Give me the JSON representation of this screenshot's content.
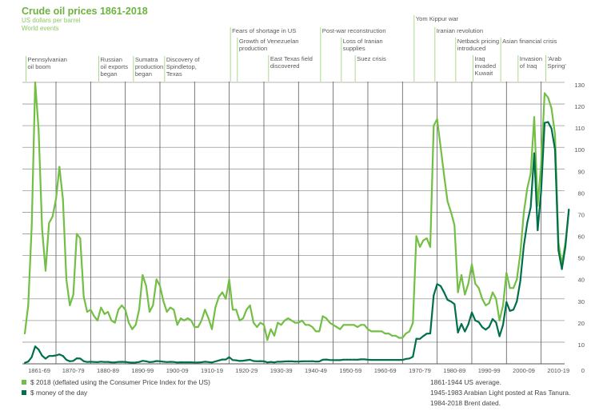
{
  "chart_data": {
    "type": "line",
    "title": "Crude oil prices 1861-2018",
    "subtitle": "US dollars per barrel",
    "events_heading": "World events",
    "ylim": [
      0,
      130
    ],
    "yticks": [
      0,
      10,
      20,
      30,
      40,
      50,
      60,
      70,
      80,
      90,
      100,
      110,
      120,
      130
    ],
    "xlim": [
      1861,
      2018
    ],
    "x_tick_labels": [
      "1861-69",
      "1870-79",
      "1880-89",
      "1890-99",
      "1900-09",
      "1910-19",
      "1920-29",
      "1930-39",
      "1940-49",
      "1950-59",
      "1960-69",
      "1970-79",
      "1980-89",
      "1990-99",
      "2000-09",
      "2010-19"
    ],
    "grid": true,
    "legend_placement": "bottom-left",
    "x_start": 1861,
    "series": [
      {
        "name": "$ 2018 (deflated using the Consumer Price Index for the US)",
        "color": "#72bf44",
        "values": [
          14,
          27,
          64,
          130,
          108,
          62,
          43,
          65,
          68,
          76,
          91,
          76,
          39,
          27,
          32,
          60,
          58,
          31,
          24,
          25,
          22,
          20,
          26,
          23,
          24,
          20,
          19,
          25,
          27,
          25,
          19,
          16,
          18,
          25,
          41,
          36,
          24,
          27,
          39,
          36,
          29,
          24,
          26,
          25,
          18,
          21,
          20,
          21,
          20,
          17,
          17,
          20,
          25,
          21,
          16,
          26,
          31,
          33,
          30,
          39,
          25,
          25,
          20,
          21,
          25,
          27,
          19,
          17,
          19,
          18,
          11,
          16,
          13,
          19,
          18,
          20,
          21,
          20,
          19,
          19,
          20,
          18,
          18,
          17,
          15,
          15,
          22,
          21,
          19,
          18,
          17,
          16,
          18,
          18,
          18,
          18,
          17,
          18,
          18,
          16,
          15,
          15,
          15,
          15,
          14,
          14,
          13,
          13,
          12,
          12,
          14,
          15,
          19,
          59,
          54,
          57,
          58,
          54,
          110,
          113,
          100,
          87,
          75,
          70,
          64,
          33,
          41,
          32,
          37,
          46,
          37,
          35,
          30,
          27,
          28,
          33,
          30,
          20,
          27,
          42,
          35,
          35,
          39,
          51,
          70,
          81,
          88,
          114,
          73,
          92,
          125,
          123,
          118,
          106,
          56,
          46,
          56,
          71
        ]
      },
      {
        "name": "$ money of the day",
        "color": "#00704a",
        "values": [
          0.49,
          1.05,
          3.15,
          8.06,
          6.59,
          3.74,
          2.41,
          3.63,
          3.64,
          3.86,
          4.34,
          3.64,
          1.83,
          1.17,
          1.35,
          2.56,
          2.42,
          1.19,
          0.86,
          0.95,
          0.86,
          0.78,
          1.0,
          0.84,
          0.88,
          0.71,
          0.67,
          0.88,
          0.94,
          0.87,
          0.67,
          0.56,
          0.64,
          0.84,
          1.36,
          1.18,
          0.79,
          0.91,
          1.29,
          1.19,
          0.96,
          0.8,
          0.94,
          0.86,
          0.62,
          0.73,
          0.72,
          0.72,
          0.7,
          0.61,
          0.61,
          0.74,
          0.95,
          0.81,
          0.64,
          1.1,
          1.56,
          1.98,
          2.01,
          3.07,
          1.73,
          1.61,
          1.34,
          1.43,
          1.68,
          1.88,
          1.3,
          1.17,
          1.27,
          1.19,
          0.65,
          0.87,
          0.67,
          1.0,
          0.97,
          1.09,
          1.18,
          1.13,
          1.02,
          1.02,
          1.14,
          1.19,
          1.2,
          1.21,
          1.05,
          1.12,
          1.9,
          1.99,
          1.78,
          1.71,
          1.71,
          1.71,
          1.93,
          1.93,
          1.93,
          1.93,
          1.9,
          2.08,
          2.08,
          1.9,
          1.8,
          1.8,
          1.8,
          1.8,
          1.8,
          1.8,
          1.8,
          1.8,
          1.8,
          1.8,
          2.24,
          2.48,
          3.29,
          11.58,
          11.53,
          12.8,
          13.92,
          14.02,
          31.61,
          36.83,
          35.93,
          32.97,
          29.55,
          28.78,
          27.56,
          14.43,
          18.44,
          14.92,
          18.23,
          23.73,
          20.0,
          19.32,
          16.97,
          15.82,
          17.02,
          20.67,
          19.09,
          12.72,
          17.97,
          28.5,
          24.44,
          25.02,
          28.83,
          38.27,
          54.52,
          65.14,
          72.39,
          97.26,
          61.67,
          79.5,
          111.26,
          111.67,
          108.66,
          98.95,
          52.39,
          43.73,
          54.19,
          71.31
        ]
      }
    ],
    "events": [
      {
        "year": 1861,
        "label": [
          "Pennsylvanian",
          "oil boom"
        ]
      },
      {
        "year": 1882,
        "label": [
          "Russian",
          "oil exports",
          "began"
        ]
      },
      {
        "year": 1892,
        "label": [
          "Sumatra",
          "production",
          "began"
        ]
      },
      {
        "year": 1901,
        "label": [
          "Discovery of",
          "Spindletop,",
          "Texas"
        ]
      },
      {
        "year": 1920,
        "label": [
          "Fears of shortage in US"
        ]
      },
      {
        "year": 1922,
        "label": [
          "Growth of Venezuelan",
          "production"
        ]
      },
      {
        "year": 1931,
        "label": [
          "East Texas field",
          "discovered"
        ]
      },
      {
        "year": 1946,
        "label": [
          "Post-war reconstruction"
        ]
      },
      {
        "year": 1952,
        "label": [
          "Loss of Iranian",
          "supplies"
        ]
      },
      {
        "year": 1956,
        "label": [
          "Suez crisis"
        ]
      },
      {
        "year": 1973,
        "label": [
          "Yom Kippur war"
        ]
      },
      {
        "year": 1979,
        "label": [
          "Iranian revolution"
        ]
      },
      {
        "year": 1985,
        "label": [
          "Netback pricing",
          "introduced"
        ]
      },
      {
        "year": 1990,
        "label": [
          "Iraq",
          "invaded",
          "Kuwait"
        ]
      },
      {
        "year": 1998,
        "label": [
          "Asian financial crisis"
        ]
      },
      {
        "year": 2003,
        "label": [
          "Invasion",
          "of Iraq"
        ]
      },
      {
        "year": 2011,
        "label": [
          "'Arab",
          "Spring'"
        ]
      }
    ],
    "notes": [
      "1861-1944 US average.",
      "1945-1983 Arabian Light posted at Ras Tanura.",
      "1984-2018 Brent dated."
    ]
  }
}
